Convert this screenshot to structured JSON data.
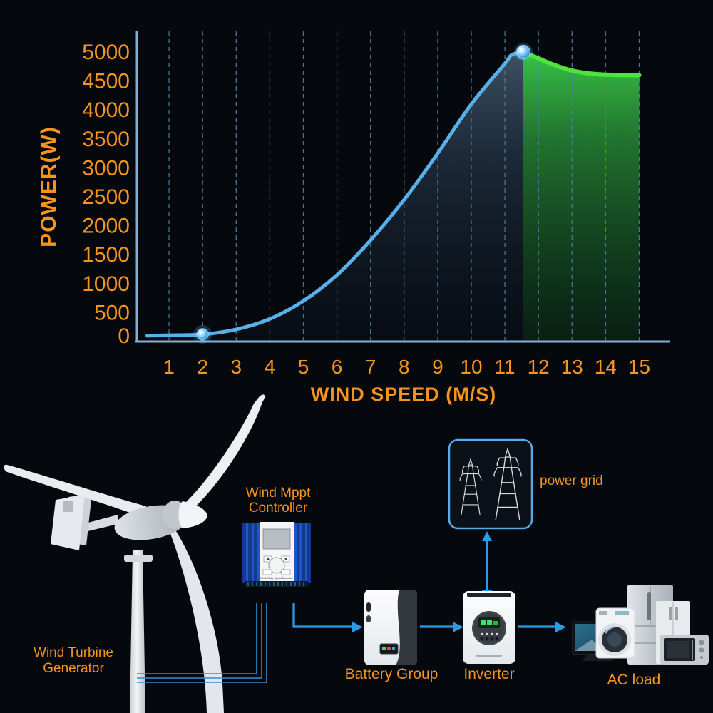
{
  "background": "#05080d",
  "colors": {
    "accent_orange": "#F5941F",
    "curve_blue": "#56B1EA",
    "curve_green": "#4FE43C",
    "arrow_blue": "#2B9BE8",
    "axis_blue": "#86AECF",
    "gridline_blue": "#517F9F",
    "grid_box_border": "#57ABE8",
    "controller_blue": "#1E55C8"
  },
  "chart_data": {
    "type": "area",
    "title": "",
    "xlabel": "WIND SPEED (M/S)",
    "ylabel": "POWER(W)",
    "x_ticks": [
      1,
      2,
      3,
      4,
      5,
      6,
      7,
      8,
      9,
      10,
      11,
      12,
      13,
      14,
      15
    ],
    "y_ticks": [
      0,
      500,
      1000,
      1500,
      2000,
      2500,
      3000,
      3500,
      4000,
      4500,
      5000
    ],
    "xlim": [
      0,
      15
    ],
    "ylim": [
      0,
      5000
    ],
    "grid": "vertical-dashed",
    "legend": "none",
    "series": [
      {
        "name": "power-curve-rising",
        "color": "#56B1EA",
        "width": 5,
        "fill": "blueFill",
        "points": [
          [
            0.35,
            100
          ],
          [
            1,
            110
          ],
          [
            2,
            125
          ],
          [
            3,
            210
          ],
          [
            4,
            390
          ],
          [
            5,
            700
          ],
          [
            6,
            1150
          ],
          [
            7,
            1750
          ],
          [
            8,
            2450
          ],
          [
            9,
            3250
          ],
          [
            10,
            4100
          ],
          [
            11,
            4800
          ],
          [
            11.2,
            4950
          ],
          [
            11.55,
            5000
          ]
        ]
      },
      {
        "name": "power-curve-rated",
        "color": "#4FE43C",
        "width": 6,
        "fill": "greenFill",
        "points": [
          [
            11.55,
            5000
          ],
          [
            12,
            4890
          ],
          [
            12.5,
            4770
          ],
          [
            13,
            4680
          ],
          [
            13.5,
            4630
          ],
          [
            14,
            4610
          ],
          [
            15,
            4600
          ]
        ]
      }
    ],
    "markers": [
      {
        "x": 2,
        "y": 125
      },
      {
        "x": 11.55,
        "y": 5000
      }
    ]
  },
  "diagram": {
    "turbine_label_line1": "Wind Turbine",
    "turbine_label_line2": "Generator",
    "controller_label_line1": "Wind Mppt",
    "controller_label_line2": "Controller",
    "controller_device_text": "Wind&Solar Hybrid Controller",
    "grid_label": "power grid",
    "battery_label": "Battery Group",
    "inverter_label": "Inverter",
    "ac_load_label": "AC load"
  }
}
